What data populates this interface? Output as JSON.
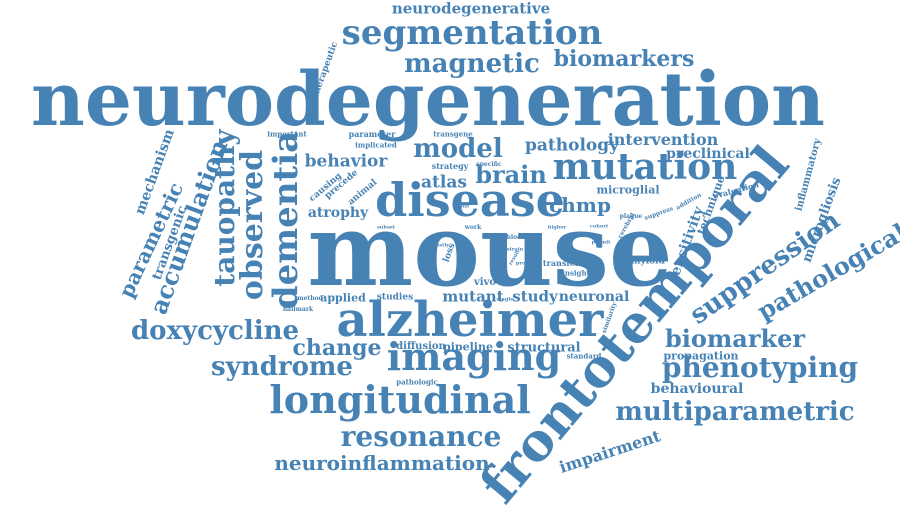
{
  "accent_color": "#4682b4",
  "words": [
    {
      "text": "neurodegeneration",
      "color": "#4682b4"
    },
    {
      "text": "mouse",
      "color": "#4682b4"
    },
    {
      "text": "frontotemporal",
      "color": "#4682b4"
    },
    {
      "text": "alzheimer",
      "color": "#4682b4"
    },
    {
      "text": "disease",
      "color": "#4682b4"
    },
    {
      "text": "longitudinal",
      "color": "#4682b4"
    },
    {
      "text": "segmentation",
      "color": "#4682b4"
    },
    {
      "text": "mutation",
      "color": "#4682b4"
    },
    {
      "text": "imaging",
      "color": "#4682b4"
    },
    {
      "text": "multiparametric",
      "color": "#4682b4"
    },
    {
      "text": "resonance",
      "color": "#4682b4"
    },
    {
      "text": "dementia",
      "color": "#4682b4"
    },
    {
      "text": "observed",
      "color": "#4682b4"
    },
    {
      "text": "tauopathy",
      "color": "#4682b4"
    },
    {
      "text": "suppression",
      "color": "#4682b4"
    },
    {
      "text": "pathological",
      "color": "#4682b4"
    },
    {
      "text": "phenotyping",
      "color": "#4682b4"
    },
    {
      "text": "magnetic",
      "color": "#4682b4"
    },
    {
      "text": "biomarkers",
      "color": "#4682b4"
    },
    {
      "text": "neuroinflammation",
      "color": "#4682b4"
    },
    {
      "text": "doxycycline",
      "color": "#4682b4"
    },
    {
      "text": "syndrome",
      "color": "#4682b4"
    },
    {
      "text": "accumulation",
      "color": "#4682b4"
    },
    {
      "text": "biomarker",
      "color": "#4682b4"
    },
    {
      "text": "model",
      "color": "#4682b4"
    },
    {
      "text": "brain",
      "color": "#4682b4"
    },
    {
      "text": "change",
      "color": "#4682b4"
    },
    {
      "text": "neurodegenerative",
      "color": "#4682b4"
    },
    {
      "text": "parametric",
      "color": "#4682b4"
    },
    {
      "text": "impairment",
      "color": "#4682b4"
    },
    {
      "text": "pathology",
      "color": "#4682b4"
    },
    {
      "text": "behavior",
      "color": "#4682b4"
    },
    {
      "text": "chmp",
      "color": "#4682b4"
    },
    {
      "text": "atlas",
      "color": "#4682b4"
    },
    {
      "text": "intervention",
      "color": "#4682b4"
    },
    {
      "text": "preclinical",
      "color": "#4682b4"
    },
    {
      "text": "sensitivity",
      "color": "#4682b4"
    },
    {
      "text": "microgliosis",
      "color": "#4682b4"
    },
    {
      "text": "behavioural",
      "color": "#4682b4"
    },
    {
      "text": "mechanism",
      "color": "#4682b4"
    },
    {
      "text": "transgenic",
      "color": "#4682b4"
    },
    {
      "text": "atrophy",
      "color": "#4682b4"
    },
    {
      "text": "study",
      "color": "#4682b4"
    },
    {
      "text": "neuronal",
      "color": "#4682b4"
    },
    {
      "text": "mutant",
      "color": "#4682b4"
    },
    {
      "text": "structural",
      "color": "#4682b4"
    },
    {
      "text": "pipeline",
      "color": "#4682b4"
    },
    {
      "text": "diffusion",
      "color": "#4682b4"
    },
    {
      "text": "propagation",
      "color": "#4682b4"
    },
    {
      "text": "microglial",
      "color": "#4682b4"
    },
    {
      "text": "technique",
      "color": "#4682b4"
    },
    {
      "text": "inflammatory",
      "color": "#4682b4"
    },
    {
      "text": "therapeutic",
      "color": "#4682b4"
    },
    {
      "text": "applied",
      "color": "#4682b4"
    },
    {
      "text": "studies",
      "color": "#4682b4"
    },
    {
      "text": "amyloid",
      "color": "#4682b4"
    },
    {
      "text": "vivo",
      "color": "#4682b4"
    },
    {
      "text": "transfer",
      "color": "#4682b4"
    },
    {
      "text": "loss",
      "color": "#4682b4"
    },
    {
      "text": "important",
      "color": "#4682b4"
    },
    {
      "text": "parameter",
      "color": "#4682b4"
    },
    {
      "text": "implicated",
      "color": "#4682b4"
    },
    {
      "text": "transgene",
      "color": "#4682b4"
    },
    {
      "text": "strategy",
      "color": "#4682b4"
    },
    {
      "text": "specific",
      "color": "#4682b4"
    },
    {
      "text": "causing",
      "color": "#4682b4"
    },
    {
      "text": "precede",
      "color": "#4682b4"
    },
    {
      "text": "animal",
      "color": "#4682b4"
    },
    {
      "text": "evaluation",
      "color": "#4682b4"
    },
    {
      "text": "addition",
      "color": "#4682b4"
    },
    {
      "text": "suppress",
      "color": "#4682b4"
    },
    {
      "text": "plaque",
      "color": "#4682b4"
    },
    {
      "text": "cohort",
      "color": "#4682b4"
    },
    {
      "text": "cerebral",
      "color": "#4682b4"
    },
    {
      "text": "tissue",
      "color": "#4682b4"
    },
    {
      "text": "work",
      "color": "#4682b4"
    },
    {
      "text": "higher",
      "color": "#4682b4"
    },
    {
      "text": "subset",
      "color": "#4682b4"
    },
    {
      "text": "simple",
      "color": "#4682b4"
    },
    {
      "text": "mostly",
      "color": "#4682b4"
    },
    {
      "text": "blood",
      "color": "#4682b4"
    },
    {
      "text": "insight",
      "color": "#4682b4"
    },
    {
      "text": "permit",
      "color": "#4682b4"
    },
    {
      "text": "similarity",
      "color": "#4682b4"
    },
    {
      "text": "standard",
      "color": "#4682b4"
    },
    {
      "text": "pathologic",
      "color": "#4682b4"
    },
    {
      "text": "single",
      "color": "#4682b4"
    },
    {
      "text": "method",
      "color": "#4682b4"
    },
    {
      "text": "hallmark",
      "color": "#4682b4"
    },
    {
      "text": "strain",
      "color": "#4682b4"
    },
    {
      "text": "probe",
      "color": "#4682b4"
    },
    {
      "text": "result",
      "color": "#4682b4"
    }
  ]
}
